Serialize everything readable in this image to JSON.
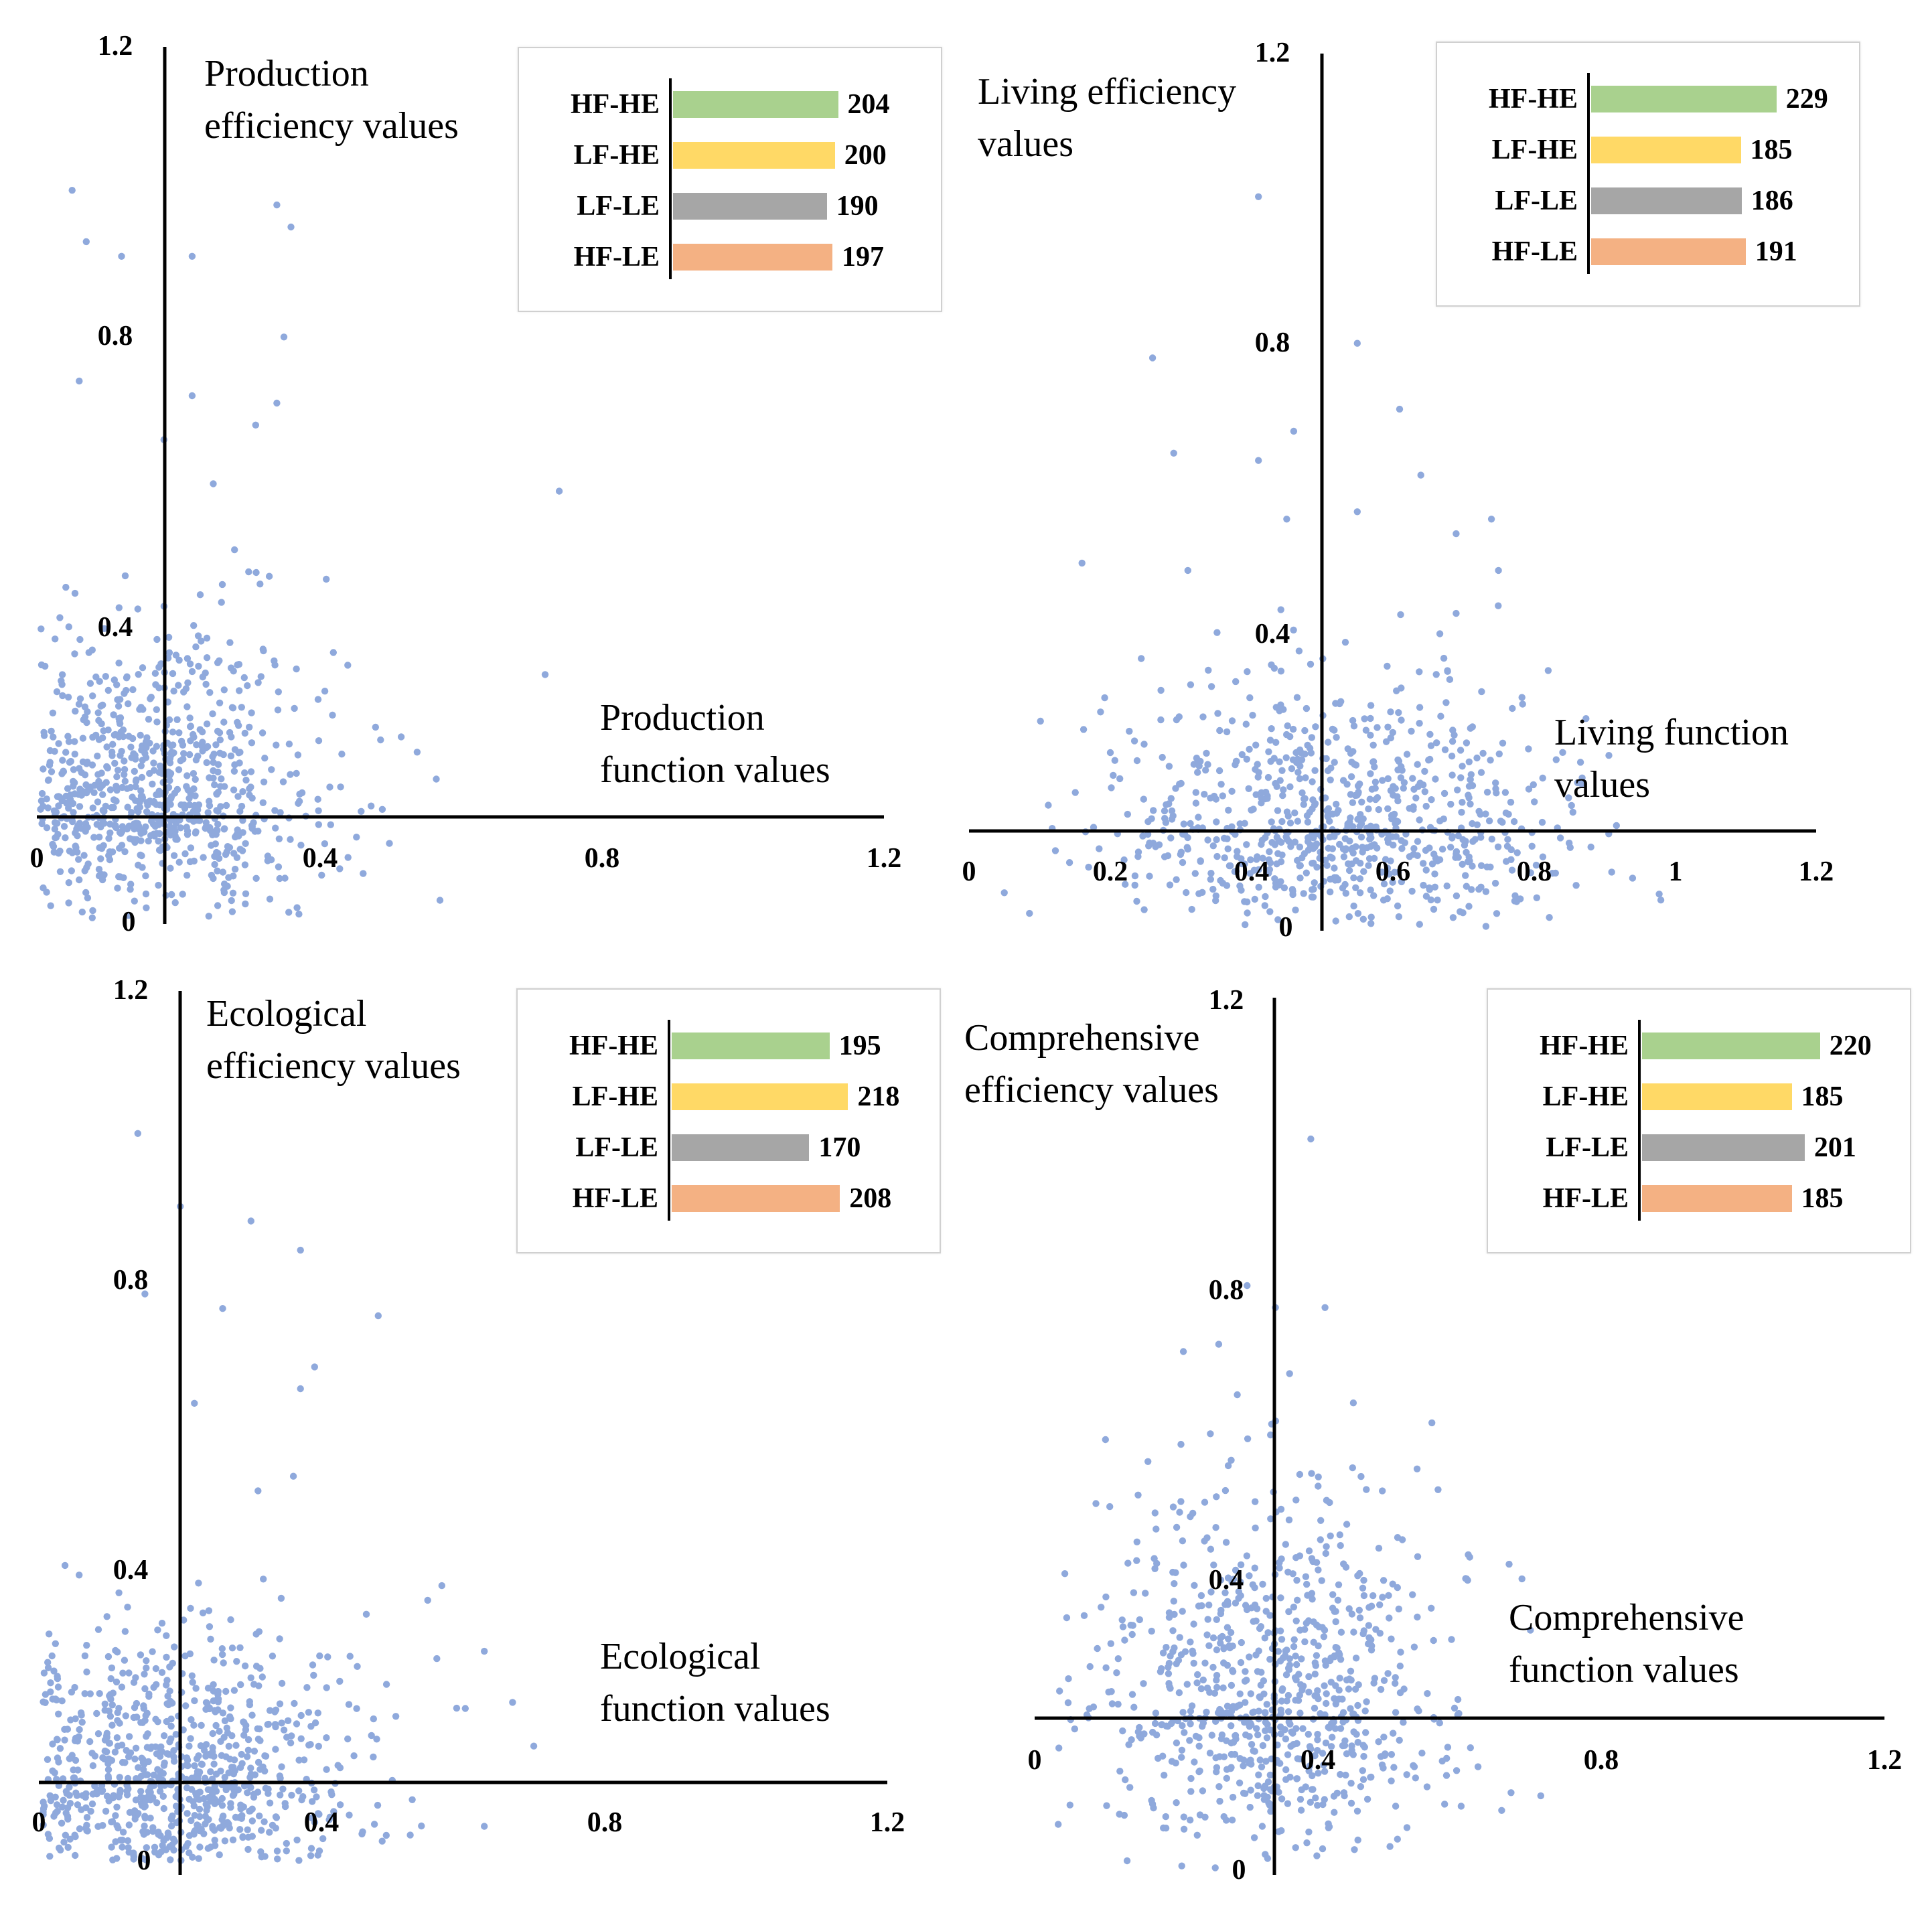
{
  "colors": {
    "point": "#8fa9dc",
    "HF-HE": "#a9d18e",
    "LF-HE": "#ffd966",
    "LF-LE": "#a6a6a6",
    "HF-LE": "#f4b183"
  },
  "chart_data": [
    {
      "type": "scatter",
      "id": "production",
      "title_lines": [
        "Production",
        "efficiency  values"
      ],
      "xlabel_lines": [
        "Production",
        "function  values"
      ],
      "xticks": [
        "0",
        "0.4",
        "0.8",
        "1.2"
      ],
      "yticks": [
        "0",
        "0.4",
        "0.8",
        "1.2"
      ],
      "xlim": [
        0,
        1.2
      ],
      "ylim": [
        0,
        1.2
      ],
      "quadrant_origin": {
        "x": 0.18,
        "y": 0.14
      },
      "legend": [
        {
          "name": "HF-HE",
          "value": 204
        },
        {
          "name": "LF-HE",
          "value": 200
        },
        {
          "name": "LF-LE",
          "value": 190
        },
        {
          "name": "HF-LE",
          "value": 197
        }
      ],
      "cloud": {
        "cx": 0.18,
        "cy": 0.17,
        "sx": 0.11,
        "sy": 0.12,
        "n": 780,
        "seed": 11
      },
      "outliers": [
        [
          0.05,
          1.0
        ],
        [
          0.07,
          0.93
        ],
        [
          0.12,
          0.91
        ],
        [
          0.34,
          0.98
        ],
        [
          0.36,
          0.95
        ],
        [
          0.22,
          0.91
        ],
        [
          0.35,
          0.8
        ],
        [
          0.06,
          0.74
        ],
        [
          0.22,
          0.72
        ],
        [
          0.34,
          0.71
        ],
        [
          0.31,
          0.68
        ],
        [
          0.18,
          0.66
        ],
        [
          0.25,
          0.6
        ],
        [
          0.74,
          0.59
        ],
        [
          0.72,
          0.34
        ],
        [
          0.28,
          0.51
        ],
        [
          0.3,
          0.48
        ],
        [
          0.41,
          0.47
        ],
        [
          0.42,
          0.37
        ]
      ]
    },
    {
      "type": "scatter",
      "id": "living",
      "title_lines": [
        "Living  efficiency",
        "values"
      ],
      "xlabel_lines": [
        "Living  function",
        "values"
      ],
      "xticks": [
        "0",
        "0.2",
        "0.4",
        "0.6",
        "0.8",
        "1",
        "1.2"
      ],
      "yticks": [
        "0",
        "0.4",
        "0.8",
        "1.2"
      ],
      "xlim": [
        0,
        1.2
      ],
      "ylim": [
        0,
        1.2
      ],
      "quadrant_origin": {
        "x": 0.5,
        "y": 0.14
      },
      "legend": [
        {
          "name": "HF-HE",
          "value": 229
        },
        {
          "name": "LF-HE",
          "value": 185
        },
        {
          "name": "LF-LE",
          "value": 186
        },
        {
          "name": "HF-LE",
          "value": 191
        }
      ],
      "cloud": {
        "cx": 0.52,
        "cy": 0.14,
        "sx": 0.16,
        "sy": 0.1,
        "n": 780,
        "seed": 23
      },
      "outliers": [
        [
          0.41,
          1.0
        ],
        [
          0.55,
          0.8
        ],
        [
          0.26,
          0.78
        ],
        [
          0.61,
          0.71
        ],
        [
          0.46,
          0.68
        ],
        [
          0.29,
          0.65
        ],
        [
          0.41,
          0.64
        ],
        [
          0.64,
          0.62
        ],
        [
          0.55,
          0.57
        ],
        [
          0.45,
          0.56
        ],
        [
          0.16,
          0.5
        ],
        [
          0.74,
          0.56
        ],
        [
          0.69,
          0.54
        ],
        [
          0.75,
          0.49
        ],
        [
          0.31,
          0.49
        ],
        [
          0.05,
          0.05
        ],
        [
          0.94,
          0.07
        ],
        [
          0.98,
          0.04
        ],
        [
          0.86,
          0.06
        ]
      ]
    },
    {
      "type": "scatter",
      "id": "ecological",
      "title_lines": [
        "Ecological",
        "efficiency  values"
      ],
      "xlabel_lines": [
        "Ecological",
        "function  values"
      ],
      "xticks": [
        "0",
        "0.4",
        "0.8",
        "1.2"
      ],
      "yticks": [
        "0",
        "0.4",
        "0.8",
        "1.2"
      ],
      "xlim": [
        0,
        1.2
      ],
      "ylim": [
        0,
        1.2
      ],
      "quadrant_origin": {
        "x": 0.2,
        "y": 0.11
      },
      "legend": [
        {
          "name": "HF-HE",
          "value": 195
        },
        {
          "name": "LF-HE",
          "value": 218
        },
        {
          "name": "LF-LE",
          "value": 170
        },
        {
          "name": "HF-LE",
          "value": 208
        }
      ],
      "cloud": {
        "cx": 0.2,
        "cy": 0.11,
        "sx": 0.12,
        "sy": 0.1,
        "n": 800,
        "seed": 37
      },
      "outliers": [
        [
          0.14,
          1.0
        ],
        [
          0.2,
          0.9
        ],
        [
          0.3,
          0.88
        ],
        [
          0.37,
          0.84
        ],
        [
          0.15,
          0.78
        ],
        [
          0.26,
          0.76
        ],
        [
          0.48,
          0.75
        ],
        [
          0.39,
          0.68
        ],
        [
          0.37,
          0.65
        ],
        [
          0.22,
          0.63
        ],
        [
          0.36,
          0.53
        ],
        [
          0.31,
          0.51
        ],
        [
          0.57,
          0.38
        ],
        [
          0.55,
          0.36
        ],
        [
          0.63,
          0.29
        ],
        [
          0.67,
          0.22
        ],
        [
          0.7,
          0.16
        ],
        [
          0.63,
          0.05
        ]
      ]
    },
    {
      "type": "scatter",
      "id": "comprehensive",
      "title_lines": [
        "Comprehensive",
        "efficiency  values"
      ],
      "xlabel_lines": [
        "Comprehensive",
        "function  values"
      ],
      "xticks": [
        "0",
        "0.4",
        "0.8",
        "1.2"
      ],
      "yticks": [
        "0",
        "0.4",
        "0.8",
        "1.2"
      ],
      "xlim": [
        0,
        1.2
      ],
      "ylim": [
        0,
        1.2
      ],
      "quadrant_origin": {
        "x": 0.34,
        "y": 0.21
      },
      "legend": [
        {
          "name": "HF-HE",
          "value": 220
        },
        {
          "name": "LF-HE",
          "value": 185
        },
        {
          "name": "LF-LE",
          "value": 201
        },
        {
          "name": "HF-LE",
          "value": 185
        }
      ],
      "cloud": {
        "cx": 0.34,
        "cy": 0.22,
        "sx": 0.12,
        "sy": 0.15,
        "n": 780,
        "seed": 53
      },
      "outliers": [
        [
          0.39,
          1.0
        ],
        [
          0.3,
          0.8
        ],
        [
          0.34,
          0.77
        ],
        [
          0.41,
          0.77
        ],
        [
          0.26,
          0.72
        ],
        [
          0.21,
          0.71
        ],
        [
          0.36,
          0.68
        ],
        [
          0.1,
          0.59
        ],
        [
          0.07,
          0.35
        ],
        [
          0.45,
          0.64
        ],
        [
          0.54,
          0.55
        ],
        [
          0.61,
          0.4
        ],
        [
          0.56,
          0.36
        ],
        [
          0.67,
          0.42
        ],
        [
          0.7,
          0.33
        ],
        [
          0.16,
          0.56
        ],
        [
          0.17,
          0.49
        ]
      ]
    }
  ]
}
